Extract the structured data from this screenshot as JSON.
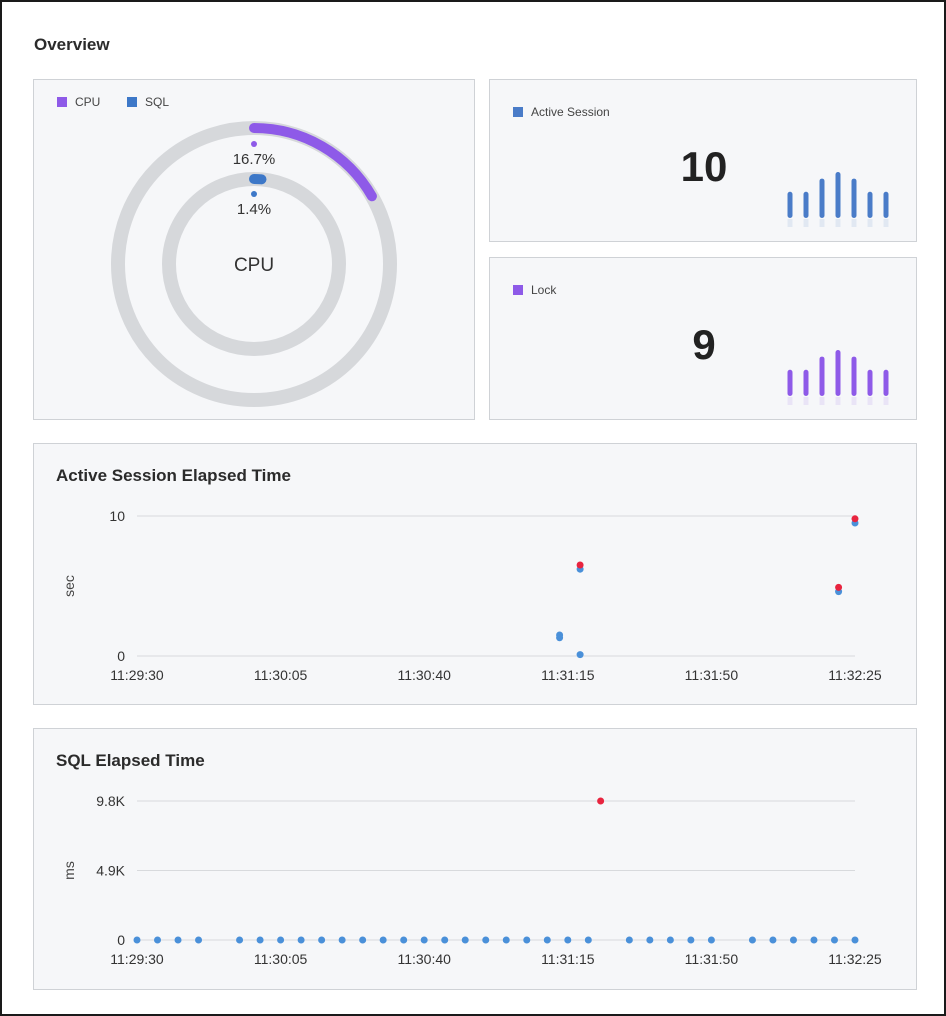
{
  "overview": {
    "title": "Overview"
  },
  "donut": {
    "legend": [
      {
        "label": "CPU",
        "color": "#8e5ae8"
      },
      {
        "label": "SQL",
        "color": "#3d78c8"
      }
    ],
    "outer_value_label": "16.7%",
    "inner_value_label": "1.4%",
    "center_label": "CPU",
    "outer_percent": 16.7,
    "inner_percent": 1.4
  },
  "active_session": {
    "legend": "Active Session",
    "color": "#4a7cc8",
    "value": "10",
    "spark": [
      4,
      4,
      6,
      7,
      6,
      4,
      4
    ]
  },
  "lock": {
    "legend": "Lock",
    "color": "#8e5ae8",
    "value": "9",
    "spark": [
      4,
      4,
      6,
      7,
      6,
      4,
      4
    ]
  },
  "chart_data": [
    {
      "type": "scatter",
      "title": "Active Session Elapsed Time",
      "ylabel": "sec",
      "xlabel": "",
      "x_ticks": [
        "11:29:30",
        "11:30:05",
        "11:30:40",
        "11:31:15",
        "11:31:50",
        "11:32:25"
      ],
      "y_ticks": [
        "0",
        "10"
      ],
      "xlim": [
        "11:29:30",
        "11:32:25"
      ],
      "ylim": [
        0,
        10
      ],
      "grid": true,
      "series": [
        {
          "color": "#4a90d9",
          "points": [
            [
              "11:31:13",
              1.3
            ],
            [
              "11:31:13",
              1.5
            ],
            [
              "11:31:18",
              0.1
            ],
            [
              "11:31:18",
              6.2
            ],
            [
              "11:32:21",
              4.6
            ],
            [
              "11:32:25",
              9.5
            ]
          ]
        },
        {
          "color": "#e8243f",
          "points": [
            [
              "11:31:18",
              6.5
            ],
            [
              "11:32:21",
              4.9
            ],
            [
              "11:32:25",
              9.8
            ]
          ]
        }
      ]
    },
    {
      "type": "scatter",
      "title": "SQL Elapsed Time",
      "ylabel": "ms",
      "xlabel": "",
      "x_ticks": [
        "11:29:30",
        "11:30:05",
        "11:30:40",
        "11:31:15",
        "11:31:50",
        "11:32:25"
      ],
      "y_ticks": [
        "0",
        "4.9K",
        "9.8K"
      ],
      "xlim": [
        "11:29:30",
        "11:32:25"
      ],
      "ylim": [
        0,
        9800
      ],
      "grid": true,
      "series": [
        {
          "color": "#4a90d9",
          "points": [
            [
              "11:29:30",
              0
            ],
            [
              "11:29:35",
              0
            ],
            [
              "11:29:40",
              0
            ],
            [
              "11:29:45",
              0
            ],
            [
              "11:29:55",
              0
            ],
            [
              "11:30:00",
              0
            ],
            [
              "11:30:05",
              0
            ],
            [
              "11:30:10",
              0
            ],
            [
              "11:30:15",
              0
            ],
            [
              "11:30:20",
              0
            ],
            [
              "11:30:25",
              0
            ],
            [
              "11:30:30",
              0
            ],
            [
              "11:30:35",
              0
            ],
            [
              "11:30:40",
              0
            ],
            [
              "11:30:45",
              0
            ],
            [
              "11:30:50",
              0
            ],
            [
              "11:30:55",
              0
            ],
            [
              "11:31:00",
              0
            ],
            [
              "11:31:05",
              0
            ],
            [
              "11:31:10",
              0
            ],
            [
              "11:31:15",
              0
            ],
            [
              "11:31:20",
              0
            ],
            [
              "11:31:30",
              0
            ],
            [
              "11:31:35",
              0
            ],
            [
              "11:31:40",
              0
            ],
            [
              "11:31:45",
              0
            ],
            [
              "11:31:50",
              0
            ],
            [
              "11:32:00",
              0
            ],
            [
              "11:32:05",
              0
            ],
            [
              "11:32:10",
              0
            ],
            [
              "11:32:15",
              0
            ],
            [
              "11:32:20",
              0
            ],
            [
              "11:32:25",
              0
            ]
          ]
        },
        {
          "color": "#e8243f",
          "points": [
            [
              "11:31:23",
              9800
            ]
          ]
        }
      ]
    }
  ]
}
